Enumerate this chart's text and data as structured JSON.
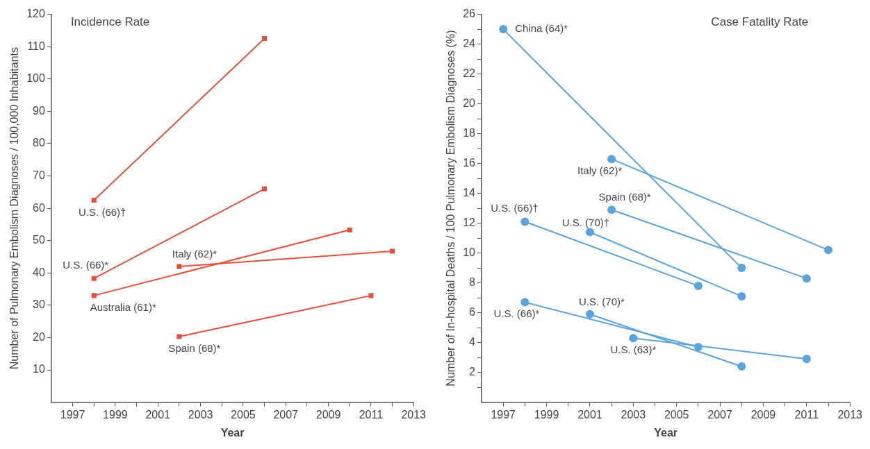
{
  "chart_data": [
    {
      "type": "line",
      "title": "Incidence Rate",
      "xlabel": "Year",
      "ylabel": "Number of Pulmonary Embolism Diagnoses / 100,000 Inhabitants",
      "marker": "square",
      "legend": false,
      "grid": false,
      "xlim": [
        1996,
        2013
      ],
      "xticks": [
        1997,
        {
          "value": 1998,
          "label": null
        },
        1999,
        {
          "value": 2000,
          "label": null
        },
        2001,
        {
          "value": 2002,
          "label": null
        },
        2003,
        {
          "value": 2004,
          "label": null
        },
        2005,
        {
          "value": 2006,
          "label": null
        },
        2007,
        {
          "value": 2008,
          "label": null
        },
        2009,
        {
          "value": 2010,
          "label": null
        },
        2011,
        {
          "value": 2012,
          "label": null
        },
        2013
      ],
      "ylim": [
        0,
        120
      ],
      "yticks": [
        10,
        20,
        30,
        40,
        50,
        60,
        70,
        80,
        90,
        100,
        110,
        120
      ],
      "series": [
        {
          "name": "U.S. (66)†",
          "color": "#e5503a",
          "x": [
            1998,
            2006
          ],
          "values": [
            62.5,
            112.5
          ]
        },
        {
          "name": "U.S. (66)*",
          "color": "#e5503a",
          "x": [
            1998,
            2006
          ],
          "values": [
            38.3,
            66
          ]
        },
        {
          "name": "Australia (61)*",
          "color": "#e5503a",
          "x": [
            1998,
            2010
          ],
          "values": [
            33,
            53.3
          ]
        },
        {
          "name": "Italy (62)*",
          "color": "#e5503a",
          "x": [
            2002,
            2012
          ],
          "values": [
            42,
            46.7
          ]
        },
        {
          "name": "Spain (68)*",
          "color": "#e5503a",
          "x": [
            2002,
            2011
          ],
          "values": [
            20.3,
            33
          ]
        }
      ]
    },
    {
      "type": "line",
      "title": "Case Fatality Rate",
      "xlabel": "Year",
      "ylabel": "Number of In-hospital Deaths / 100 Pulmonary Embolism Diagnoses (%)",
      "marker": "circle",
      "legend": false,
      "grid": false,
      "xlim": [
        1996,
        2013
      ],
      "xticks": [
        1997,
        {
          "value": 1998,
          "label": null
        },
        1999,
        {
          "value": 2000,
          "label": null
        },
        2001,
        {
          "value": 2002,
          "label": null
        },
        2003,
        {
          "value": 2004,
          "label": null
        },
        2005,
        {
          "value": 2006,
          "label": null
        },
        2007,
        {
          "value": 2008,
          "label": null
        },
        2009,
        {
          "value": 2010,
          "label": null
        },
        2011,
        {
          "value": 2012,
          "label": null
        },
        2013
      ],
      "ylim": [
        0,
        26
      ],
      "yticks": [
        {
          "value": 1,
          "label": null
        },
        2,
        {
          "value": 3,
          "label": null
        },
        4,
        {
          "value": 5,
          "label": null
        },
        6,
        {
          "value": 7,
          "label": null
        },
        8,
        {
          "value": 9,
          "label": null
        },
        10,
        {
          "value": 11,
          "label": null
        },
        12,
        {
          "value": 13,
          "label": null
        },
        14,
        {
          "value": 15,
          "label": null
        },
        16,
        {
          "value": 17,
          "label": null
        },
        18,
        {
          "value": 19,
          "label": null
        },
        20,
        {
          "value": 21,
          "label": null
        },
        22,
        {
          "value": 23,
          "label": null
        },
        24,
        {
          "value": 25,
          "label": null
        },
        26
      ],
      "series": [
        {
          "name": "China (64)*",
          "color": "#5aa3dc",
          "x": [
            1997,
            2008
          ],
          "values": [
            25,
            9
          ]
        },
        {
          "name": "Italy (62)*",
          "color": "#5aa3dc",
          "x": [
            2002,
            2012
          ],
          "values": [
            16.3,
            10.2
          ]
        },
        {
          "name": "Spain (68)*",
          "color": "#5aa3dc",
          "x": [
            2002,
            2011
          ],
          "values": [
            12.9,
            8.3
          ]
        },
        {
          "name": "U.S. (66)†",
          "color": "#5aa3dc",
          "x": [
            1998,
            2006
          ],
          "values": [
            12.1,
            7.8
          ]
        },
        {
          "name": "U.S. (70)†",
          "color": "#5aa3dc",
          "x": [
            2001,
            2008
          ],
          "values": [
            11.4,
            7.1
          ]
        },
        {
          "name": "U.S. (66)*",
          "color": "#5aa3dc",
          "x": [
            1998,
            2006
          ],
          "values": [
            6.7,
            3.7
          ]
        },
        {
          "name": "U.S. (70)*",
          "color": "#5aa3dc",
          "x": [
            2001,
            2008
          ],
          "values": [
            5.9,
            2.4
          ]
        },
        {
          "name": "U.S. (63)*",
          "color": "#5aa3dc",
          "x": [
            2003,
            2011
          ],
          "values": [
            4.3,
            2.9
          ]
        }
      ]
    }
  ]
}
